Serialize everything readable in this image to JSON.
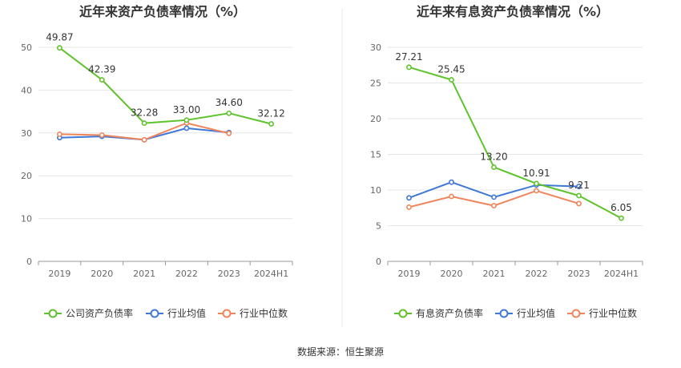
{
  "source_label": "数据来源：恒生聚源",
  "colors": {
    "company": "#5ec32b",
    "industry_avg": "#3f78d6",
    "industry_median": "#f0845a"
  },
  "chart_data": [
    {
      "type": "line",
      "title": "近年来资产负债率情况（%）",
      "categories": [
        "2019",
        "2020",
        "2021",
        "2022",
        "2023",
        "2024H1"
      ],
      "ylim": [
        0,
        50
      ],
      "yticks": [
        0,
        10,
        20,
        30,
        40,
        50
      ],
      "grid": true,
      "legend_position": "bottom",
      "series": [
        {
          "name": "公司资产负债率",
          "color_key": "company",
          "values": [
            49.87,
            42.39,
            32.28,
            33.0,
            34.6,
            32.12
          ],
          "labels": [
            "49.87",
            "42.39",
            "32.28",
            "33.00",
            "34.60",
            "32.12"
          ]
        },
        {
          "name": "行业均值",
          "color_key": "industry_avg",
          "values": [
            28.9,
            29.2,
            28.4,
            31.1,
            30.1,
            null
          ]
        },
        {
          "name": "行业中位数",
          "color_key": "industry_median",
          "values": [
            29.7,
            29.5,
            28.4,
            32.3,
            29.9,
            null
          ]
        }
      ]
    },
    {
      "type": "line",
      "title": "近年来有息资产负债率情况（%）",
      "categories": [
        "2019",
        "2020",
        "2021",
        "2022",
        "2023",
        "2024H1"
      ],
      "ylim": [
        0,
        30
      ],
      "yticks": [
        0,
        5,
        10,
        15,
        20,
        25,
        30
      ],
      "grid": true,
      "legend_position": "bottom",
      "series": [
        {
          "name": "有息资产负债率",
          "color_key": "company",
          "values": [
            27.21,
            25.45,
            13.2,
            10.91,
            9.21,
            6.05
          ],
          "labels": [
            "27.21",
            "25.45",
            "13.20",
            "10.91",
            "9.21",
            "6.05"
          ]
        },
        {
          "name": "行业均值",
          "color_key": "industry_avg",
          "values": [
            8.9,
            11.1,
            9.0,
            10.7,
            10.5,
            null
          ]
        },
        {
          "name": "行业中位数",
          "color_key": "industry_median",
          "values": [
            7.6,
            9.1,
            7.8,
            9.9,
            8.1,
            null
          ]
        }
      ]
    }
  ]
}
